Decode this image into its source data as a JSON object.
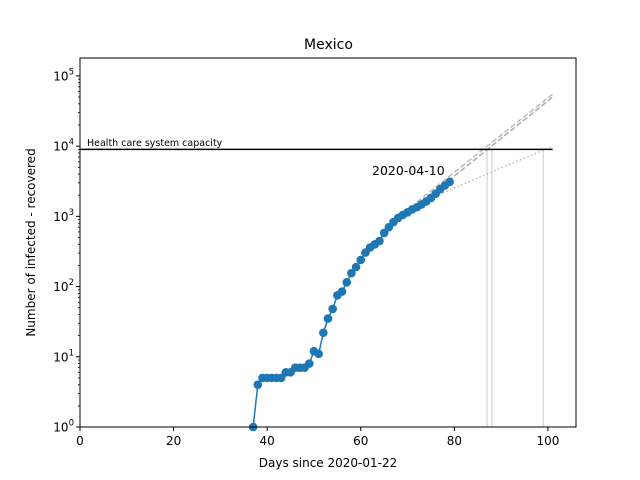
{
  "chart_data": {
    "type": "line",
    "title": "Mexico",
    "xlabel": "Days since 2020-01-22",
    "ylabel": "Number of infected - recovered",
    "xlim": [
      0,
      106
    ],
    "ylim": [
      1,
      180000
    ],
    "yscale": "log",
    "grid": false,
    "x_ticks": [
      0,
      20,
      40,
      60,
      80,
      100
    ],
    "y_ticks": [
      {
        "value": 1,
        "base": "10",
        "exp": "0"
      },
      {
        "value": 10,
        "base": "10",
        "exp": "1"
      },
      {
        "value": 100,
        "base": "10",
        "exp": "2"
      },
      {
        "value": 1000,
        "base": "10",
        "exp": "3"
      },
      {
        "value": 10000,
        "base": "10",
        "exp": "4"
      },
      {
        "value": 100000,
        "base": "10",
        "exp": "5"
      }
    ],
    "series": [
      {
        "color": "#1f77b4",
        "marker": "circle",
        "x": [
          37,
          38,
          39,
          40,
          41,
          42,
          43,
          44,
          45,
          46,
          47,
          48,
          49,
          50,
          51,
          52,
          53,
          54,
          55,
          56,
          57,
          58,
          59,
          60,
          61,
          62,
          63,
          64,
          65,
          66,
          67,
          68,
          69,
          70,
          71,
          72,
          73,
          74,
          75,
          76,
          77,
          78,
          79
        ],
        "y": [
          1,
          4,
          5,
          5,
          5,
          5,
          5,
          6,
          6,
          7,
          7,
          7,
          8,
          12,
          11,
          22,
          35,
          48,
          75,
          85,
          115,
          155,
          190,
          240,
          305,
          360,
          400,
          445,
          580,
          700,
          830,
          950,
          1050,
          1140,
          1260,
          1350,
          1480,
          1630,
          1830,
          2100,
          2450,
          2750,
          3100
        ]
      }
    ],
    "projections": [
      {
        "style": "dashed",
        "color": "#aaaaaa",
        "x": [
          72,
          101
        ],
        "y": [
          1400,
          50000
        ]
      },
      {
        "style": "dashed",
        "color": "#bbbbbb",
        "x": [
          72,
          101
        ],
        "y": [
          1600,
          55000
        ]
      },
      {
        "style": "dotted",
        "color": "#bbbbbb",
        "x": [
          72,
          101
        ],
        "y": [
          1500,
          10000
        ]
      }
    ],
    "verticals": [
      {
        "x": 87,
        "color": "#dddddd"
      },
      {
        "x": 88,
        "color": "#dddddd"
      },
      {
        "x": 99,
        "color": "#dddddd"
      }
    ],
    "hline": {
      "y": 9000,
      "x_end": 101,
      "color": "#000000"
    },
    "annotations": {
      "capacity_label": "Health care system capacity",
      "date_label": "2020-04-10"
    }
  }
}
